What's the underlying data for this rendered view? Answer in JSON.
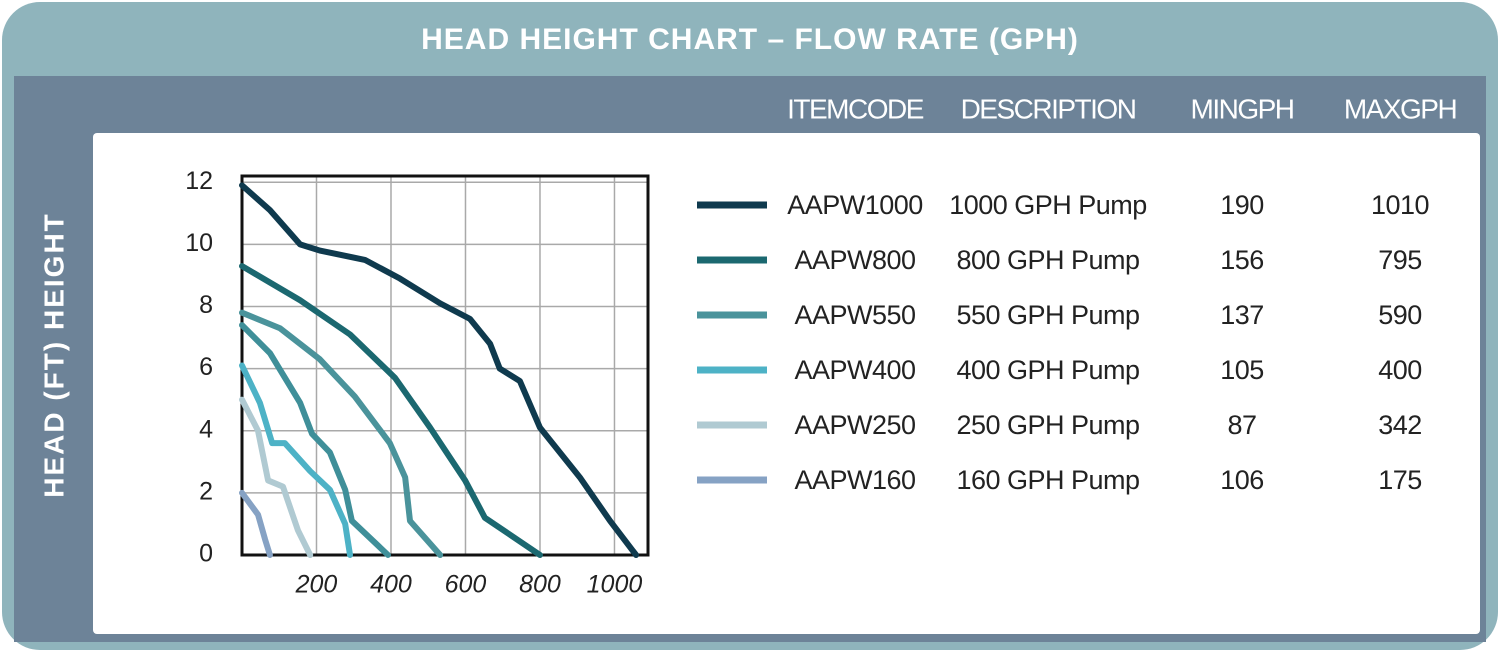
{
  "chart_data": {
    "type": "line",
    "title": "HEAD HEIGHT CHART – FLOW RATE (GPH)",
    "y_label": "HEAD (FT) HEIGHT",
    "columns": [
      "ITEMCODE",
      "DESCRIPTION",
      "MINGPH",
      "MAXGPH"
    ],
    "xlim": [
      0,
      1090
    ],
    "ylim": [
      0,
      12.2
    ],
    "xticks": [
      200,
      400,
      600,
      800,
      1000
    ],
    "yticks": [
      0,
      2,
      4,
      6,
      8,
      10,
      12
    ],
    "grid": true,
    "series": [
      {
        "name": "AAPW1000",
        "description": "1000 GPH Pump",
        "min_gph": 190,
        "max_gph": 1010,
        "color": "#0f3a4e",
        "x": [
          0,
          75,
          156,
          209,
          330,
          424,
          532,
          612,
          666,
          692,
          746,
          800,
          907,
          988,
          1058
        ],
        "values": [
          11.9,
          11.1,
          10.0,
          9.8,
          9.5,
          8.9,
          8.1,
          7.6,
          6.8,
          6.0,
          5.6,
          4.1,
          2.5,
          1.1,
          0
        ]
      },
      {
        "name": "AAPW800",
        "description": "800 GPH Pump",
        "min_gph": 156,
        "max_gph": 795,
        "color": "#1b6870",
        "x": [
          0,
          156,
          290,
          411,
          505,
          599,
          652,
          800
        ],
        "values": [
          9.3,
          8.2,
          7.1,
          5.7,
          4.1,
          2.4,
          1.2,
          0
        ]
      },
      {
        "name": "AAPW550",
        "description": "550 GPH Pump",
        "min_gph": 137,
        "max_gph": 590,
        "color": "#4a939b",
        "x": [
          0,
          102,
          209,
          303,
          397,
          438,
          451,
          532
        ],
        "values": [
          7.8,
          7.3,
          6.3,
          5.1,
          3.6,
          2.5,
          1.1,
          0
        ]
      },
      {
        "name": "AAPW400",
        "description": "400 GPH Pump",
        "min_gph": 105,
        "max_gph": 400,
        "color": "#4db2c6",
        "x": [
          0,
          48,
          81,
          115,
          183,
          236,
          277,
          290
        ],
        "values": [
          6.1,
          4.9,
          3.6,
          3.6,
          2.7,
          2.1,
          1.0,
          0
        ]
      },
      {
        "name": "AAPW250",
        "description": "250 GPH Pump",
        "min_gph": 87,
        "max_gph": 342,
        "color": "#b0cad2",
        "x": [
          0,
          43,
          70,
          110,
          150,
          183
        ],
        "values": [
          5.0,
          4.0,
          2.4,
          2.2,
          0.8,
          0
        ]
      },
      {
        "name": "AAPW160",
        "description": "160 GPH Pump",
        "min_gph": 106,
        "max_gph": 175,
        "color": "#86a2c4",
        "x": [
          0,
          43,
          62,
          75
        ],
        "values": [
          2.0,
          1.3,
          0.5,
          0
        ]
      },
      {
        "color": "#3f8f99",
        "x": [
          0,
          75,
          156,
          188,
          236,
          277,
          295,
          392
        ],
        "values": [
          7.4,
          6.5,
          4.9,
          3.9,
          3.3,
          2.1,
          1.1,
          0
        ]
      }
    ]
  }
}
